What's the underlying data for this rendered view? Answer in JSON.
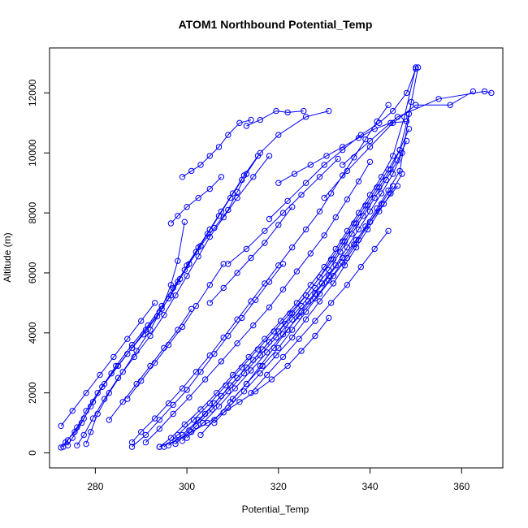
{
  "chart_data": {
    "type": "line",
    "title": "ATOM1 Northbound Potential_Temp",
    "xlabel": "Potential_Temp",
    "ylabel": "Altitude (m)",
    "xlim": [
      270,
      369
    ],
    "ylim": [
      -500,
      13500
    ],
    "xticks": [
      280,
      300,
      320,
      340,
      360
    ],
    "yticks": [
      0,
      2000,
      4000,
      6000,
      8000,
      10000,
      12000
    ],
    "grid": false,
    "legend": "none",
    "marker": "open-circle",
    "series_color": "#0000ff",
    "series": [
      {
        "x": [
          272.5,
          273.5,
          275.5,
          277.5,
          279.5,
          282,
          285,
          288,
          291,
          294,
          296.5,
          298.5,
          300.5,
          303,
          306,
          309,
          311,
          313,
          316,
          320,
          326,
          331
        ],
        "y": [
          180,
          350,
          700,
          1150,
          1700,
          2300,
          2900,
          3500,
          4100,
          4700,
          5250,
          5800,
          6300,
          6900,
          7500,
          8100,
          8700,
          9300,
          10000,
          10600,
          11200,
          11400
        ]
      },
      {
        "x": [
          273,
          274,
          276,
          278,
          280.5,
          283.5,
          287,
          290.5,
          293.5,
          296,
          298,
          300,
          302.5,
          305,
          307.5,
          310,
          312.5,
          315.5
        ],
        "y": [
          200,
          420,
          850,
          1400,
          2000,
          2650,
          3300,
          3950,
          4550,
          5150,
          5700,
          6250,
          6850,
          7450,
          8050,
          8650,
          9250,
          9900
        ]
      },
      {
        "x": [
          274,
          275,
          277,
          279,
          281.5,
          284.5,
          288,
          291.5,
          294.5,
          297,
          299.5,
          302,
          304.5,
          307,
          309.5,
          312
        ],
        "y": [
          250,
          500,
          1000,
          1550,
          2200,
          2900,
          3600,
          4250,
          4900,
          5500,
          6100,
          6700,
          7300,
          7900,
          8500,
          9100
        ]
      },
      {
        "x": [
          276,
          277.5,
          279.5,
          282,
          285,
          288.5,
          292,
          295,
          297.5,
          300,
          302.5,
          305,
          308,
          311,
          314.5,
          318
        ],
        "y": [
          250,
          600,
          1150,
          1800,
          2500,
          3200,
          3900,
          4600,
          5250,
          5900,
          6550,
          7200,
          7850,
          8500,
          9200,
          9900
        ]
      },
      {
        "x": [
          278,
          279,
          280.5,
          283,
          286,
          289,
          292,
          294.5,
          296.5,
          298,
          299.5
        ],
        "y": [
          300,
          700,
          1300,
          2000,
          2700,
          3400,
          4100,
          4800,
          5600,
          6400,
          7700
        ]
      },
      {
        "x": [
          288,
          290,
          293,
          296,
          299,
          302,
          305,
          308,
          311,
          314,
          317,
          320,
          323,
          326,
          329,
          331.5,
          334,
          336.5,
          339,
          341.5,
          344
        ],
        "y": [
          350,
          700,
          1150,
          1650,
          2150,
          2700,
          3250,
          3850,
          4450,
          5050,
          5650,
          6250,
          6850,
          7450,
          8050,
          8650,
          9250,
          9850,
          10450,
          11050,
          11600
        ]
      },
      {
        "x": [
          291,
          294,
          297,
          300.5,
          304,
          307.5,
          311,
          314.5,
          318,
          321,
          324,
          327,
          330,
          332.5,
          335,
          337.5,
          340
        ],
        "y": [
          350,
          800,
          1300,
          1850,
          2450,
          3050,
          3650,
          4250,
          4850,
          5450,
          6050,
          6650,
          7250,
          7850,
          8450,
          9050,
          9700
        ]
      },
      {
        "x": [
          294,
          296.5,
          299.5,
          303,
          306.5,
          310,
          313.5,
          317,
          320.5,
          324,
          327,
          330,
          332.5,
          335,
          337.5,
          340,
          342.5,
          345,
          347.5,
          350
        ],
        "y": [
          200,
          500,
          950,
          1450,
          2000,
          2600,
          3200,
          3800,
          4400,
          5000,
          5600,
          6200,
          6800,
          7400,
          8000,
          8600,
          9200,
          9900,
          11200,
          12850
        ]
      },
      {
        "x": [
          296,
          299,
          302.5,
          306,
          309.5,
          313,
          316.5,
          320,
          323,
          326,
          329,
          331.5,
          334,
          336.5,
          339,
          341.5,
          344,
          346.5,
          348.5
        ],
        "y": [
          250,
          600,
          1100,
          1650,
          2250,
          2850,
          3450,
          4050,
          4650,
          5250,
          5850,
          6450,
          7050,
          7650,
          8250,
          8850,
          9450,
          10100,
          10800
        ]
      },
      {
        "x": [
          297.5,
          300.5,
          304,
          307.5,
          311,
          314.5,
          318,
          321.5,
          325,
          328,
          331,
          333.5,
          336,
          338.5,
          341,
          343.5,
          346,
          348
        ],
        "y": [
          300,
          750,
          1300,
          1900,
          2500,
          3100,
          3700,
          4300,
          4900,
          5500,
          6100,
          6700,
          7300,
          7900,
          8500,
          9100,
          9750,
          10400
        ]
      },
      {
        "x": [
          299,
          302,
          305.5,
          309,
          312.5,
          316,
          319.5,
          323,
          326.5,
          329.5,
          332.5,
          335,
          337.5,
          340,
          342.5,
          345,
          347
        ],
        "y": [
          400,
          900,
          1450,
          2050,
          2650,
          3250,
          3850,
          4450,
          5050,
          5650,
          6250,
          6850,
          7450,
          8050,
          8650,
          9300,
          10000
        ]
      },
      {
        "x": [
          295,
          298,
          301.5,
          305,
          308.5,
          312,
          315.5,
          319,
          322.5,
          326,
          329,
          332,
          334.5,
          337,
          339.5,
          342,
          344.5,
          346.5,
          348.5,
          350.5
        ],
        "y": [
          200,
          600,
          1100,
          1650,
          2250,
          2850,
          3450,
          4050,
          4650,
          5250,
          5850,
          6450,
          7050,
          7650,
          8250,
          8850,
          9450,
          10100,
          11300,
          12850
        ]
      },
      {
        "x": [
          303,
          306,
          309.5,
          313,
          316.5,
          320,
          323,
          326,
          329,
          332,
          335,
          337.5,
          340,
          342.5,
          345
        ],
        "y": [
          600,
          1100,
          1700,
          2300,
          2900,
          3500,
          4100,
          4700,
          5300,
          5900,
          6500,
          7100,
          7700,
          8300,
          8900
        ]
      },
      {
        "x": [
          300,
          303.5,
          307,
          310.5,
          314,
          317.5,
          321,
          324.5,
          328,
          331,
          334,
          336.5,
          339,
          341.5,
          344,
          346.5,
          349
        ],
        "y": [
          500,
          1000,
          1550,
          2150,
          2750,
          3350,
          3950,
          4550,
          5150,
          5750,
          6350,
          6950,
          7550,
          8150,
          8750,
          9400,
          11700
        ]
      },
      {
        "x": [
          306,
          309,
          312.5,
          316,
          319.5,
          323,
          326,
          329,
          332,
          334.5,
          337,
          339.5,
          342,
          344.5,
          347
        ],
        "y": [
          1000,
          1500,
          2050,
          2650,
          3250,
          3850,
          4450,
          5050,
          5650,
          6250,
          6850,
          7450,
          8050,
          8650,
          9300
        ]
      },
      {
        "x": [
          318,
          322,
          326,
          330,
          334,
          338,
          342,
          345,
          348,
          350
        ],
        "y": [
          7800,
          8400,
          9000,
          9600,
          10100,
          10600,
          11000,
          11400,
          12000,
          12800
        ]
      },
      {
        "x": [
          330,
          335,
          340,
          345,
          350,
          357.5,
          362.5
        ],
        "y": [
          8500,
          9400,
          10200,
          11000,
          11600,
          11600,
          12050
        ]
      },
      {
        "x": [
          334,
          340,
          346,
          355,
          365,
          366.5
        ],
        "y": [
          9600,
          10400,
          11200,
          11800,
          12050,
          12000
        ]
      },
      {
        "x": [
          299,
          301,
          303,
          305,
          307,
          309,
          311.5,
          314
        ],
        "y": [
          9200,
          9400,
          9600,
          9900,
          10200,
          10600,
          11000,
          11100
        ]
      },
      {
        "x": [
          296.5,
          298,
          300,
          302.5,
          305,
          307.5
        ],
        "y": [
          7650,
          7900,
          8200,
          8500,
          8800,
          9200
        ]
      },
      {
        "x": [
          313,
          316,
          319.5,
          322,
          325.5
        ],
        "y": [
          10900,
          11100,
          11400,
          11350,
          11400
        ]
      },
      {
        "x": [
          320,
          323.5,
          327,
          330.5,
          334,
          337.5,
          341,
          344.5,
          348
        ],
        "y": [
          9000,
          9300,
          9600,
          9900,
          10200,
          10500,
          10800,
          11000,
          11050
        ]
      },
      {
        "x": [
          309,
          313,
          317,
          321,
          325,
          329,
          333
        ],
        "y": [
          6300,
          6800,
          7400,
          8000,
          8600,
          9200,
          9800
        ]
      },
      {
        "x": [
          305,
          308,
          311,
          314,
          317,
          320,
          323
        ],
        "y": [
          5000,
          5500,
          6000,
          6500,
          7000,
          7600,
          8200
        ]
      },
      {
        "x": [
          283,
          286,
          289,
          292,
          295,
          298,
          301
        ],
        "y": [
          1100,
          1700,
          2300,
          2900,
          3500,
          4100,
          4800
        ]
      },
      {
        "x": [
          287,
          290,
          293,
          296,
          299,
          302,
          305,
          308
        ],
        "y": [
          1800,
          2400,
          3000,
          3600,
          4200,
          4900,
          5600,
          6300
        ]
      },
      {
        "x": [
          272.5,
          275,
          278,
          281,
          284,
          287,
          290,
          293
        ],
        "y": [
          900,
          1400,
          2000,
          2600,
          3200,
          3800,
          4400,
          5000
        ]
      },
      {
        "x": [
          288,
          291,
          294,
          297,
          300,
          303,
          306,
          309,
          312,
          315,
          318,
          321
        ],
        "y": [
          200,
          600,
          1100,
          1600,
          2100,
          2700,
          3300,
          3900,
          4500,
          5100,
          5700,
          6300
        ]
      },
      {
        "x": [
          294,
          297.5,
          301,
          304.5,
          308,
          311.5,
          315,
          318.5,
          322,
          325,
          328,
          331
        ],
        "y": [
          200,
          400,
          700,
          1000,
          1350,
          1700,
          2050,
          2450,
          2900,
          3400,
          3900,
          4500
        ]
      },
      {
        "x": [
          310,
          313,
          316,
          319,
          322,
          325,
          328,
          331,
          334,
          337,
          340,
          343,
          346
        ],
        "y": [
          1800,
          2300,
          2900,
          3500,
          4100,
          4700,
          5300,
          5900,
          6500,
          7100,
          7700,
          8300,
          8900
        ]
      },
      {
        "x": [
          314,
          317.5,
          321,
          324.5,
          328,
          331.5,
          335,
          338,
          341,
          344
        ],
        "y": [
          2000,
          2600,
          3200,
          3800,
          4400,
          5000,
          5600,
          6200,
          6800,
          7400
        ]
      }
    ]
  }
}
